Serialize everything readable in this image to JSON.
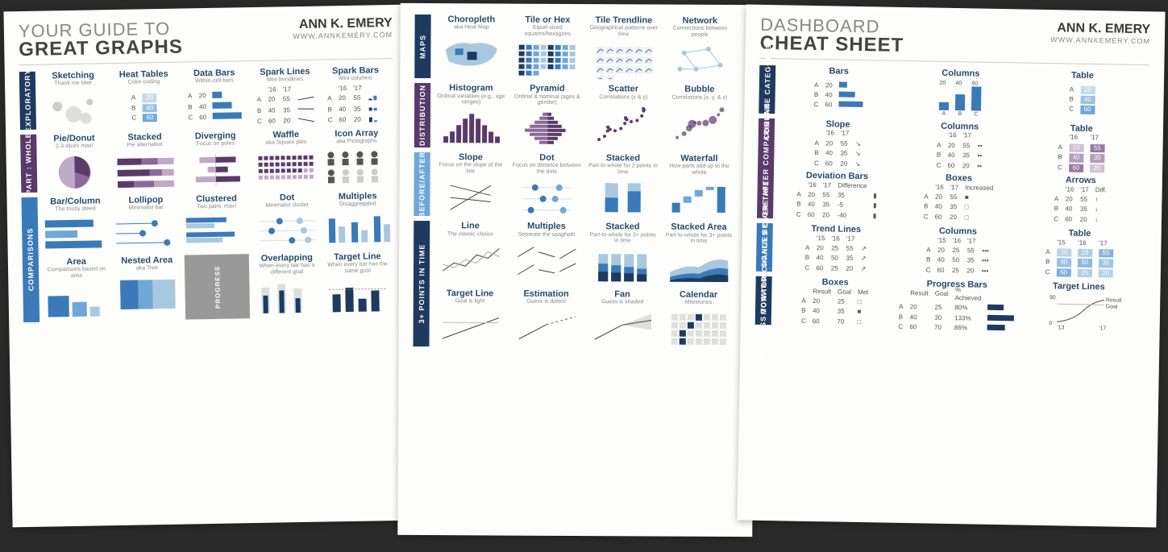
{
  "author": {
    "name": "ANN K. EMERY",
    "url": "WWW.ANNKEMERY.COM"
  },
  "colors": {
    "navy": "#1e3a5f",
    "blue": "#3a7ab8",
    "lblue": "#6fa8d8",
    "pblue": "#a8c8e0",
    "purple": "#5a3a6a",
    "lpurple": "#8a6a9a",
    "ppurple": "#c0a8c8",
    "grey": "#999",
    "bg": "#fdfdfb",
    "text": "#444",
    "sub": "#888"
  },
  "sheet1": {
    "title_top": "YOUR GUIDE TO",
    "title_bold": "GREAT GRAPHS",
    "sections": [
      {
        "tab": "EXPLORATORY",
        "tabClass": "nav",
        "cols": 5,
        "cells": [
          {
            "t": "Sketching",
            "s": "Thank me later",
            "thumb": "sketch"
          },
          {
            "t": "Heat Tables",
            "s": "Color-coding",
            "thumb": "heat_abc"
          },
          {
            "t": "Data Bars",
            "s": "Within-cell bars",
            "thumb": "databars_abc"
          },
          {
            "t": "Spark Lines",
            "s": "Mini trendlines",
            "thumb": "spark_lines"
          },
          {
            "t": "Spark Bars",
            "s": "Mini columns",
            "thumb": "spark_bars"
          }
        ]
      },
      {
        "tab": "PART : WHOLE",
        "tabClass": "purple",
        "cols": 5,
        "cells": [
          {
            "t": "Pie/Donut",
            "s": "2-3 slices max!",
            "thumb": "pie"
          },
          {
            "t": "Stacked",
            "s": "Pie alternative",
            "thumb": "stacked_h"
          },
          {
            "t": "Diverging",
            "s": "Focus on poles",
            "thumb": "diverging"
          },
          {
            "t": "Waffle",
            "s": "aka Square pies",
            "thumb": "waffle"
          },
          {
            "t": "Icon Array",
            "s": "aka Pictographs",
            "thumb": "icons"
          }
        ]
      },
      {
        "tab": "COMPARISONS",
        "tabClass": "blue",
        "cols": 5,
        "cells": [
          {
            "t": "Bar/Column",
            "s": "The trusty steed",
            "thumb": "bars_h"
          },
          {
            "t": "Lollipop",
            "s": "Minimalist bar",
            "thumb": "lollipop"
          },
          {
            "t": "Clustered",
            "s": "Two pairs, max!",
            "thumb": "clustered"
          },
          {
            "t": "Dot",
            "s": "Minimalist cluster",
            "thumb": "dotplot"
          },
          {
            "t": "Multiples",
            "s": "Disaggregated",
            "thumb": "multiples"
          },
          {
            "t": "Area",
            "s": "Comparisons based on area",
            "thumb": "area_sq"
          },
          {
            "t": "Nested Area",
            "s": "aka Tree",
            "thumb": "nested"
          },
          {
            "progress": true
          },
          {
            "t": "Overlapping",
            "s": "When every bar has a different goal",
            "thumb": "overlap"
          },
          {
            "t": "Target Line",
            "s": "When every bar has the same goal",
            "thumb": "target_bars"
          }
        ]
      }
    ],
    "heat_abc": {
      "rows": [
        [
          "A",
          "20"
        ],
        [
          "B",
          "40"
        ],
        [
          "C",
          "60"
        ]
      ]
    },
    "databars_abc": {
      "rows": [
        [
          "A",
          "20"
        ],
        [
          "B",
          "40"
        ],
        [
          "C",
          "60"
        ]
      ]
    },
    "spark_lines": {
      "rows": [
        [
          "A",
          "20",
          "55"
        ],
        [
          "B",
          "40",
          "35"
        ],
        [
          "C",
          "60",
          "20"
        ]
      ],
      "hdr": [
        "'16",
        "'17"
      ]
    },
    "spark_bars": {
      "rows": [
        [
          "A",
          "20",
          "55"
        ],
        [
          "B",
          "40",
          "35"
        ],
        [
          "C",
          "60",
          "20"
        ]
      ],
      "hdr": [
        "'16",
        "'17"
      ]
    }
  },
  "sheet2": {
    "sections": [
      {
        "tab": "MAPS",
        "tabClass": "nav",
        "cols": 4,
        "cells": [
          {
            "t": "Choropleth",
            "s": "aka Heat Map",
            "thumb": "choropleth"
          },
          {
            "t": "Tile or Hex",
            "s": "Equal-sized squares/hexagons",
            "thumb": "tile"
          },
          {
            "t": "Tile Trendline",
            "s": "Geographical patterns over time",
            "thumb": "tile_trend"
          },
          {
            "t": "Network",
            "s": "Connections between people",
            "thumb": "network"
          }
        ]
      },
      {
        "tab": "DISTRIBUTION",
        "tabClass": "purple",
        "cols": 4,
        "cells": [
          {
            "t": "Histogram",
            "s": "Ordinal variables (e.g., age ranges)",
            "thumb": "histogram"
          },
          {
            "t": "Pyramid",
            "s": "Ordinal & nominal (ages & gender)",
            "thumb": "pyramid"
          },
          {
            "t": "Scatter",
            "s": "Correlations (x & y)",
            "thumb": "scatter"
          },
          {
            "t": "Bubble",
            "s": "Correlations (x, y, & z)",
            "thumb": "bubble"
          }
        ]
      },
      {
        "tab": "BEFORE/AFTER",
        "tabClass": "lblue",
        "cols": 4,
        "cells": [
          {
            "t": "Slope",
            "s": "Focus on the slope of the line",
            "thumb": "slope"
          },
          {
            "t": "Dot",
            "s": "Focus on distance between the dots",
            "thumb": "dot2"
          },
          {
            "t": "Stacked",
            "s": "Part-to-whole for 2 points in time",
            "thumb": "stacked2"
          },
          {
            "t": "Waterfall",
            "s": "How parts add up to the whole",
            "thumb": "waterfall"
          }
        ]
      },
      {
        "tab": "3+ POINTS IN TIME",
        "tabClass": "nav",
        "cols": 4,
        "cells": [
          {
            "t": "Line",
            "s": "The classic choice",
            "thumb": "line"
          },
          {
            "t": "Multiples",
            "s": "Separate the spaghetti",
            "thumb": "line_mult"
          },
          {
            "t": "Stacked",
            "s": "Part-to-whole for 3+ points in time",
            "thumb": "stacked_col"
          },
          {
            "t": "Stacked Area",
            "s": "Part-to-whole for 3+ points in time",
            "thumb": "stacked_area"
          },
          {
            "t": "Target Line",
            "s": "Goal is light",
            "thumb": "target_line"
          },
          {
            "t": "Estimation",
            "s": "Guess is dotted",
            "thumb": "estimation"
          },
          {
            "t": "Fan",
            "s": "Guess is shaded",
            "thumb": "fan"
          },
          {
            "t": "Calendar",
            "s": "Milestones",
            "thumb": "calendar"
          }
        ]
      }
    ]
  },
  "sheet3": {
    "title_top": "DASHBOARD",
    "title_bold": "CHEAT SHEET",
    "sections": [
      {
        "tab": "COMPARE CATEGORIES",
        "tabClass": "nav",
        "cols": 3,
        "cells": [
          {
            "t": "Bars",
            "thumb": "d_bars",
            "data": {
              "rows": [
                [
                  "A",
                  "20"
                ],
                [
                  "B",
                  "40"
                ],
                [
                  "C",
                  "60"
                ]
              ]
            }
          },
          {
            "t": "Columns",
            "thumb": "d_cols",
            "data": {
              "vals": [
                20,
                40,
                60
              ],
              "labels": [
                "A",
                "B",
                "C"
              ]
            }
          },
          {
            "t": "Table",
            "thumb": "d_table",
            "data": {
              "rows": [
                [
                  "A",
                  "20"
                ],
                [
                  "B",
                  "40"
                ],
                [
                  "C",
                  "60"
                ]
              ]
            }
          }
        ]
      },
      {
        "tab": "BEFORE/AFTER COMPARISONS",
        "tabClass": "purple",
        "cols": 3,
        "cells": [
          {
            "t": "Slope",
            "thumb": "d_slope",
            "data": {
              "hdr": [
                "'16",
                "'17"
              ],
              "rows": [
                [
                  "A",
                  "20",
                  "55"
                ],
                [
                  "B",
                  "40",
                  "35"
                ],
                [
                  "C",
                  "60",
                  "20"
                ]
              ]
            }
          },
          {
            "t": "Columns",
            "thumb": "d_cols2",
            "data": {
              "hdr": [
                "'16",
                "'17"
              ],
              "rows": [
                [
                  "A",
                  "20",
                  "55"
                ],
                [
                  "B",
                  "40",
                  "35"
                ],
                [
                  "C",
                  "60",
                  "20"
                ]
              ]
            }
          },
          {
            "t": "Table",
            "thumb": "d_table2",
            "data": {
              "hdr": [
                "'16",
                "'17"
              ],
              "rows": [
                [
                  "A",
                  "20",
                  "55"
                ],
                [
                  "B",
                  "40",
                  "35"
                ],
                [
                  "C",
                  "60",
                  "20"
                ]
              ]
            }
          },
          {
            "t": "Deviation Bars",
            "thumb": "d_dev",
            "data": {
              "hdr": [
                "'16",
                "'17",
                "Difference"
              ],
              "rows": [
                [
                  "A",
                  "20",
                  "55",
                  "35"
                ],
                [
                  "B",
                  "40",
                  "35",
                  "-5"
                ],
                [
                  "C",
                  "60",
                  "20",
                  "-40"
                ]
              ]
            }
          },
          {
            "t": "Boxes",
            "thumb": "d_boxes",
            "data": {
              "hdr": [
                "'16",
                "'17",
                "Increased"
              ],
              "rows": [
                [
                  "A",
                  "20",
                  "55",
                  "■"
                ],
                [
                  "B",
                  "40",
                  "35",
                  "□"
                ],
                [
                  "C",
                  "60",
                  "20",
                  "□"
                ]
              ]
            }
          },
          {
            "t": "Arrows",
            "thumb": "d_arrows",
            "data": {
              "hdr": [
                "'16",
                "'17",
                "Diff."
              ],
              "rows": [
                [
                  "A",
                  "20",
                  "55",
                  "↑"
                ],
                [
                  "B",
                  "40",
                  "35",
                  "↓"
                ],
                [
                  "C",
                  "60",
                  "20",
                  "↓"
                ]
              ]
            }
          }
        ]
      },
      {
        "tab": "MONITOR CHANGES OVER TIME",
        "tabClass": "blue",
        "cols": 3,
        "cells": [
          {
            "t": "Trend Lines",
            "thumb": "d_trend",
            "data": {
              "hdr": [
                "'15",
                "'16",
                "'17"
              ],
              "rows": [
                [
                  "A",
                  "20",
                  "25",
                  "55"
                ],
                [
                  "B",
                  "40",
                  "50",
                  "35"
                ],
                [
                  "C",
                  "60",
                  "25",
                  "20"
                ]
              ]
            }
          },
          {
            "t": "Columns",
            "thumb": "d_cols3",
            "data": {
              "hdr": [
                "'15",
                "'16",
                "'17"
              ],
              "rows": [
                [
                  "A",
                  "20",
                  "25",
                  "55"
                ],
                [
                  "B",
                  "40",
                  "50",
                  "35"
                ],
                [
                  "C",
                  "60",
                  "25",
                  "20"
                ]
              ]
            }
          },
          {
            "t": "Table",
            "thumb": "d_table3",
            "data": {
              "hdr": [
                "'15",
                "'16",
                "'17"
              ],
              "rows": [
                [
                  "A",
                  "20",
                  "25",
                  "55"
                ],
                [
                  "B",
                  "40",
                  "50",
                  "35"
                ],
                [
                  "C",
                  "60",
                  "25",
                  "20"
                ]
              ]
            }
          }
        ]
      },
      {
        "tab": "PROGRESS TOWARDS GOALS",
        "tabClass": "nav",
        "cols": 3,
        "cells": [
          {
            "t": "Boxes",
            "thumb": "d_goalbox",
            "data": {
              "hdr": [
                "Result",
                "Goal",
                "Met"
              ],
              "rows": [
                [
                  "A",
                  "20",
                  "25",
                  "□"
                ],
                [
                  "B",
                  "40",
                  "35",
                  "■"
                ],
                [
                  "C",
                  "60",
                  "70",
                  "□"
                ]
              ]
            }
          },
          {
            "t": "Progress Bars",
            "thumb": "d_progbar",
            "data": {
              "hdr": [
                "Result",
                "Goal",
                "% Achieved"
              ],
              "rows": [
                [
                  "A",
                  "20",
                  "25",
                  "80%"
                ],
                [
                  "B",
                  "40",
                  "30",
                  "133%"
                ],
                [
                  "C",
                  "60",
                  "70",
                  "86%"
                ]
              ]
            }
          },
          {
            "t": "Target Lines",
            "thumb": "d_targetline",
            "data": {
              "y": [
                0,
                90
              ],
              "x": [
                "'13",
                "'17"
              ],
              "labels": [
                "Result",
                "Goal"
              ]
            }
          }
        ]
      }
    ]
  }
}
